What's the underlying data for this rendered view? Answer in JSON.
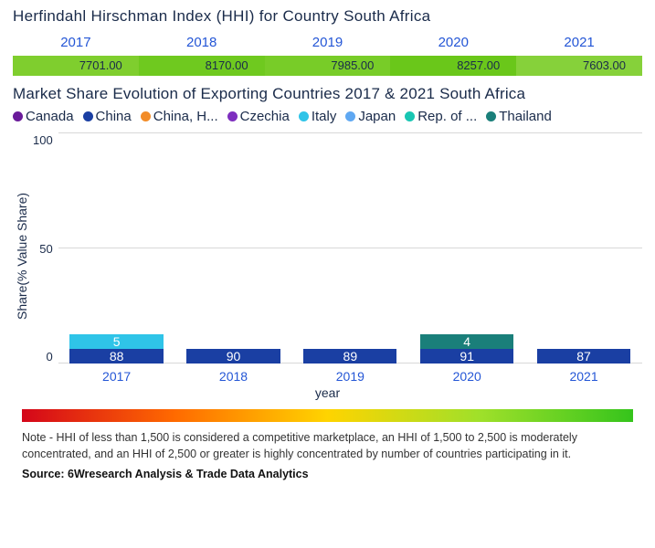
{
  "hhi": {
    "title": "Herfindahl Hirschman Index (HHI) for Country South Africa",
    "years": [
      "2017",
      "2018",
      "2019",
      "2020",
      "2021"
    ],
    "values": [
      "7701.00",
      "8170.00",
      "7985.00",
      "8257.00",
      "7603.00"
    ],
    "cell_colors": [
      "#7fce2e",
      "#6fc91f",
      "#78cc28",
      "#6ac71a",
      "#86d13a"
    ],
    "year_color": "#2456d6",
    "value_text_color": "#1a2b4a"
  },
  "chart": {
    "title": "Market Share Evolution of Exporting Countries 2017 & 2021 South Africa",
    "type": "stacked-bar",
    "y_label": "Share(% Value Share)",
    "x_label": "year",
    "ylim": [
      0,
      100
    ],
    "yticks": [
      0,
      50,
      100
    ],
    "grid_color": "#d8d8d8",
    "background_color": "#ffffff",
    "categories": [
      "2017",
      "2018",
      "2019",
      "2020",
      "2021"
    ],
    "legend": [
      {
        "label": "Canada",
        "color": "#6a1b9a"
      },
      {
        "label": "China",
        "color": "#1a3fa3"
      },
      {
        "label": "China, H...",
        "color": "#f28c28"
      },
      {
        "label": "Czechia",
        "color": "#7e2fbf"
      },
      {
        "label": "Italy",
        "color": "#2fc4e8"
      },
      {
        "label": "Japan",
        "color": "#5fa8f2"
      },
      {
        "label": "Rep. of ...",
        "color": "#19c6b3"
      },
      {
        "label": "Thailand",
        "color": "#1a7f7a"
      }
    ],
    "series_order": [
      "Canada",
      "China",
      "China, H...",
      "Czechia",
      "Italy",
      "Japan",
      "Rep. of ...",
      "Thailand"
    ],
    "colors": {
      "Canada": "#6a1b9a",
      "China": "#1a3fa3",
      "China, H...": "#f28c28",
      "Czechia": "#7e2fbf",
      "Italy": "#2fc4e8",
      "Japan": "#5fa8f2",
      "Rep. of ...": "#19c6b3",
      "Thailand": "#1a7f7a"
    },
    "stacks": [
      {
        "year": "2017",
        "segments": [
          {
            "s": "Canada",
            "v": 1
          },
          {
            "s": "China",
            "v": 88,
            "label": "88"
          },
          {
            "s": "China, H...",
            "v": 1
          },
          {
            "s": "Italy",
            "v": 5,
            "label": "5"
          },
          {
            "s": "Thailand",
            "v": 1
          }
        ]
      },
      {
        "year": "2018",
        "segments": [
          {
            "s": "China",
            "v": 90,
            "label": "90"
          },
          {
            "s": "China, H...",
            "v": 1
          },
          {
            "s": "Rep. of ...",
            "v": 1
          },
          {
            "s": "Thailand",
            "v": 2
          }
        ]
      },
      {
        "year": "2019",
        "segments": [
          {
            "s": "China",
            "v": 89,
            "label": "89"
          },
          {
            "s": "China, H...",
            "v": 1
          },
          {
            "s": "Thailand",
            "v": 4
          }
        ]
      },
      {
        "year": "2020",
        "segments": [
          {
            "s": "China",
            "v": 91,
            "label": "91"
          },
          {
            "s": "China, H...",
            "v": 1
          },
          {
            "s": "Thailand",
            "v": 4,
            "label": "4"
          }
        ]
      },
      {
        "year": "2021",
        "segments": [
          {
            "s": "China",
            "v": 87,
            "label": "87"
          },
          {
            "s": "China, H...",
            "v": 1.5
          },
          {
            "s": "Czechia",
            "v": 3
          },
          {
            "s": "Japan",
            "v": 1.5
          },
          {
            "s": "Thailand",
            "v": 2
          }
        ]
      }
    ],
    "bar_width_pct": 16,
    "label_fontsize": 14,
    "label_color": "#ffffff"
  },
  "gradient": {
    "stops": [
      "#d4061a",
      "#ff6a00",
      "#ffd400",
      "#9fe02a",
      "#35c41c"
    ]
  },
  "note": "Note - HHI of less than 1,500 is considered a competitive marketplace, an HHI of 1,500 to 2,500 is moderately concentrated, and an HHI of 2,500 or greater is highly concentrated by number of countries participating in it.",
  "source": "Source: 6Wresearch Analysis & Trade Data Analytics"
}
